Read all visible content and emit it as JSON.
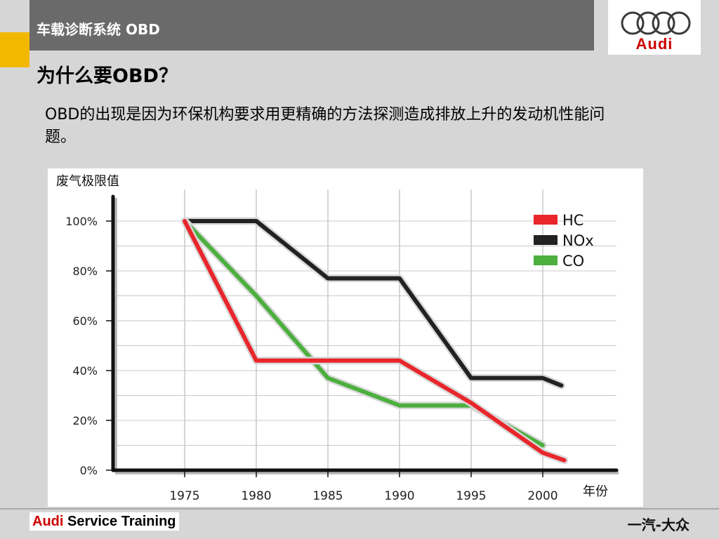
{
  "header": {
    "title": "车载诊断系统 OBD",
    "logo_text": "Audi"
  },
  "slide": {
    "title": "为什么要OBD？",
    "body": "OBD的出现是因为环保机构要求用更精确的方法探测造成排放上升的发动机性能问题。"
  },
  "footer": {
    "brand_prefix": "Audi",
    "brand_suffix": " Service Training",
    "right_text": "一汽-大众"
  },
  "colors": {
    "header": "#6a6a6a",
    "accent": "#f2b800",
    "audi_red": "#cc0000",
    "hc": "#e8262b",
    "nox": "#222222",
    "co": "#4caf3e"
  },
  "chart_data": {
    "type": "line",
    "title": "",
    "ylabel": "废气极限值",
    "xlabel": "年份",
    "x": [
      1975,
      1980,
      1985,
      1990,
      1995,
      2000
    ],
    "xlim": [
      1970,
      2005
    ],
    "ylim": [
      0,
      100
    ],
    "yticks": [
      "0%",
      "20%",
      "40%",
      "60%",
      "80%",
      "100%"
    ],
    "grid": true,
    "legend_position": "top-right",
    "series": [
      {
        "name": "HC",
        "color": "#e8262b",
        "points": [
          [
            1975,
            100
          ],
          [
            1980,
            44
          ],
          [
            1985,
            44
          ],
          [
            1990,
            44
          ],
          [
            1995,
            27
          ],
          [
            2000,
            7
          ],
          [
            2001.5,
            4
          ]
        ]
      },
      {
        "name": "NOx",
        "color": "#222222",
        "points": [
          [
            1975,
            100
          ],
          [
            1980,
            100
          ],
          [
            1985,
            77
          ],
          [
            1990,
            77
          ],
          [
            1995,
            37
          ],
          [
            2000,
            37
          ],
          [
            2001.3,
            34
          ]
        ]
      },
      {
        "name": "CO",
        "color": "#4caf3e",
        "points": [
          [
            1975,
            100
          ],
          [
            1980,
            70
          ],
          [
            1985,
            37
          ],
          [
            1990,
            26
          ],
          [
            1995,
            26
          ],
          [
            2000,
            10
          ]
        ]
      }
    ]
  }
}
